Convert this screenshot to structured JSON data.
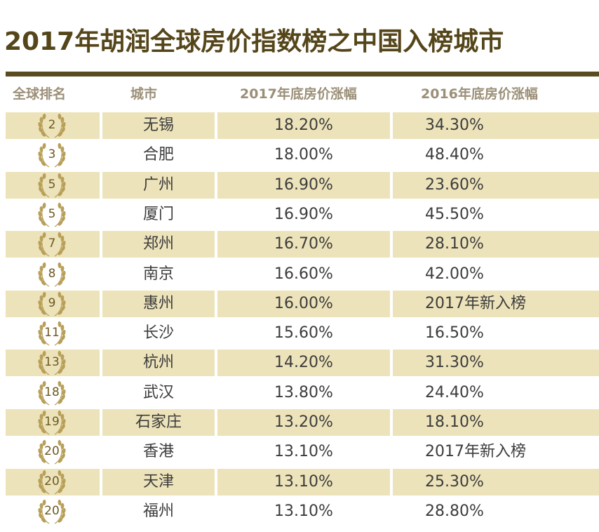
{
  "title": "2017年胡润全球房价指数榜之中国入榜城市",
  "headers": {
    "rank": "全球排名",
    "city": "城市",
    "growth_2017": "2017年底房价涨幅",
    "growth_2016": "2016年底房价涨幅"
  },
  "colors": {
    "title": "#55461a",
    "rule": "#5b4c1f",
    "row_shade": "#ede3ba",
    "header_text": "#9b8f78",
    "laurel": "#b8a05a"
  },
  "rows": [
    {
      "rank": "2",
      "city": "无锡",
      "growth_2017": "18.20%",
      "growth_2016": "34.30%"
    },
    {
      "rank": "3",
      "city": "合肥",
      "growth_2017": "18.00%",
      "growth_2016": "48.40%"
    },
    {
      "rank": "5",
      "city": "广州",
      "growth_2017": "16.90%",
      "growth_2016": "23.60%"
    },
    {
      "rank": "5",
      "city": "厦门",
      "growth_2017": "16.90%",
      "growth_2016": "45.50%"
    },
    {
      "rank": "7",
      "city": "郑州",
      "growth_2017": "16.70%",
      "growth_2016": "28.10%"
    },
    {
      "rank": "8",
      "city": "南京",
      "growth_2017": "16.60%",
      "growth_2016": "42.00%"
    },
    {
      "rank": "9",
      "city": "惠州",
      "growth_2017": "16.00%",
      "growth_2016": "2017年新入榜"
    },
    {
      "rank": "11",
      "city": "长沙",
      "growth_2017": "15.60%",
      "growth_2016": "16.50%"
    },
    {
      "rank": "13",
      "city": "杭州",
      "growth_2017": "14.20%",
      "growth_2016": "31.30%"
    },
    {
      "rank": "18",
      "city": "武汉",
      "growth_2017": "13.80%",
      "growth_2016": "24.40%"
    },
    {
      "rank": "19",
      "city": "石家庄",
      "growth_2017": "13.20%",
      "growth_2016": "18.10%"
    },
    {
      "rank": "20",
      "city": "香港",
      "growth_2017": "13.10%",
      "growth_2016": "2017年新入榜"
    },
    {
      "rank": "20",
      "city": "天津",
      "growth_2017": "13.10%",
      "growth_2016": "25.30%"
    },
    {
      "rank": "20",
      "city": "福州",
      "growth_2017": "13.10%",
      "growth_2016": "28.80%"
    }
  ]
}
